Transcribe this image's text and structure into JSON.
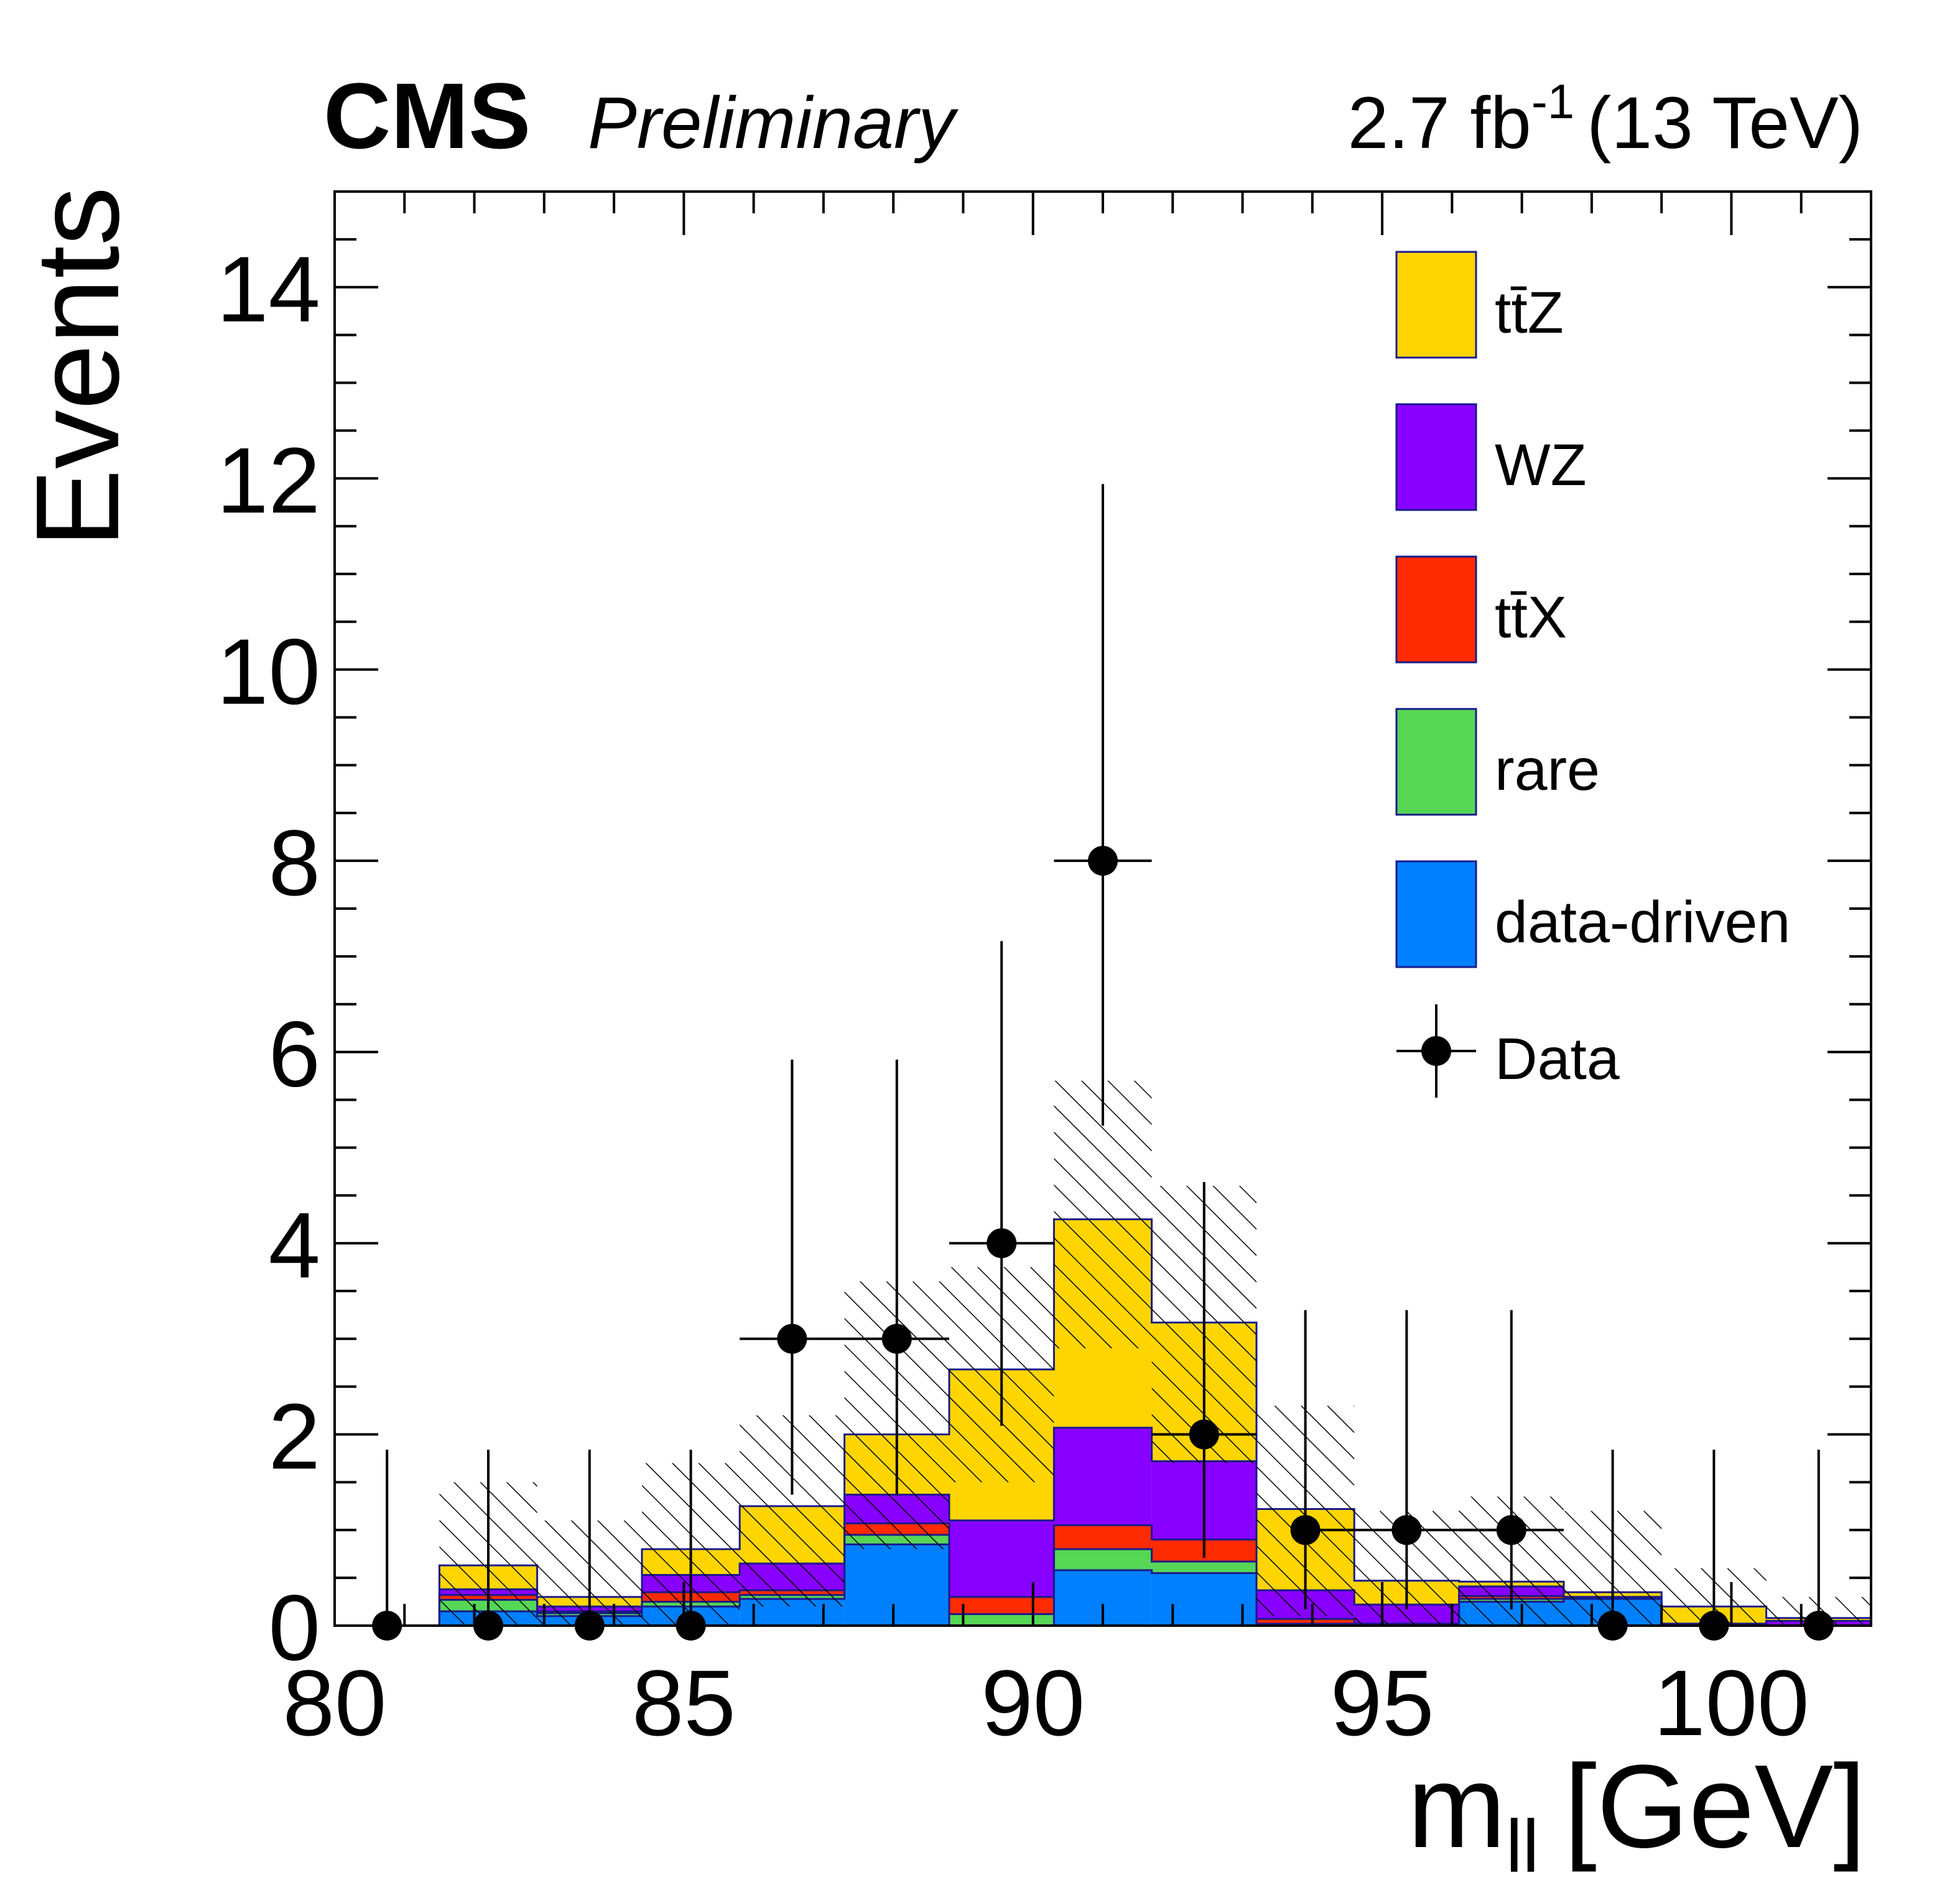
{
  "header": {
    "experiment": "CMS",
    "status": "Preliminary",
    "lumi_value": "2.7 fb",
    "lumi_exp": "-1",
    "energy": "(13 TeV)"
  },
  "chart_data": {
    "type": "bar",
    "stacked": true,
    "xlabel": "m",
    "xlabel_sub": "ll",
    "xlabel_unit": "[GeV]",
    "ylabel": "Events",
    "xlim": [
      80,
      102
    ],
    "ylim": [
      0,
      15
    ],
    "bin_edges": [
      80.0,
      81.5,
      82.9,
      84.4,
      85.8,
      87.3,
      88.8,
      90.3,
      91.7,
      93.2,
      94.6,
      96.1,
      97.6,
      99.0,
      100.5,
      102.0
    ],
    "x_ticks": [
      80,
      85,
      90,
      95,
      100
    ],
    "x_tick_labels": [
      "80",
      "85",
      "90",
      "95",
      "100"
    ],
    "y_ticks": [
      0,
      2,
      4,
      6,
      8,
      10,
      12,
      14
    ],
    "y_tick_labels": [
      "0",
      "2",
      "4",
      "6",
      "8",
      "10",
      "12",
      "14"
    ],
    "series": [
      {
        "name": "data-driven",
        "color": "#0080ff",
        "values": [
          0,
          0.15,
          0.1,
          0.2,
          0.28,
          0.85,
          0.0,
          0.58,
          0.55,
          0.0,
          0.0,
          0.25,
          0.28,
          0.0,
          0.0
        ]
      },
      {
        "name": "rare",
        "color": "#55d655",
        "values": [
          0,
          0.12,
          0.03,
          0.05,
          0.04,
          0.1,
          0.12,
          0.22,
          0.12,
          0.02,
          0.0,
          0.03,
          0.0,
          0.0,
          0.0
        ]
      },
      {
        "name": "tt̄X",
        "color": "#ff2a00",
        "values": [
          0,
          0.05,
          0.02,
          0.1,
          0.05,
          0.12,
          0.18,
          0.25,
          0.23,
          0.05,
          0.02,
          0.03,
          0.02,
          0.02,
          0.0
        ]
      },
      {
        "name": "WZ",
        "color": "#8800ff",
        "values": [
          0,
          0.06,
          0.05,
          0.18,
          0.28,
          0.3,
          0.8,
          1.02,
          0.82,
          0.3,
          0.2,
          0.1,
          0.0,
          0.0,
          0.05
        ]
      },
      {
        "name": "tt̄Z",
        "color": "#ffd500",
        "values": [
          0,
          0.25,
          0.1,
          0.27,
          0.6,
          0.63,
          1.58,
          2.18,
          1.45,
          0.85,
          0.25,
          0.05,
          0.05,
          0.18,
          0.03
        ]
      }
    ],
    "uncertainty_band": {
      "lower": [
        0,
        0.0,
        0.0,
        0.0,
        0.2,
        0.8,
        1.5,
        2.9,
        1.7,
        0.1,
        0.0,
        0.0,
        0.0,
        0.0,
        0.0
      ],
      "upper": [
        0,
        1.5,
        1.1,
        1.7,
        2.2,
        3.6,
        3.75,
        5.7,
        4.6,
        2.3,
        1.2,
        1.35,
        1.2,
        0.6,
        0.3
      ]
    },
    "data": {
      "name": "Data",
      "x": [
        80.75,
        82.2,
        83.65,
        85.1,
        86.55,
        88.05,
        89.55,
        91.0,
        92.45,
        93.9,
        95.35,
        96.85,
        98.3,
        99.75,
        101.25
      ],
      "y": [
        0,
        0,
        0,
        0,
        3,
        3,
        4,
        8,
        2,
        1,
        1,
        1,
        0,
        0,
        0
      ],
      "err_low": [
        0,
        0,
        0,
        0,
        1.63,
        1.63,
        1.91,
        2.77,
        1.29,
        0.83,
        0.83,
        0.83,
        0,
        0,
        0
      ],
      "err_high": [
        1.84,
        1.84,
        1.84,
        1.84,
        2.92,
        2.92,
        3.16,
        3.94,
        2.64,
        2.3,
        2.3,
        2.3,
        1.84,
        1.84,
        1.84
      ],
      "x_err": [
        0,
        0,
        0,
        0,
        0.75,
        0.75,
        0.75,
        0.7,
        0.75,
        0,
        1.5,
        0.75,
        0,
        0,
        0
      ]
    },
    "legend": {
      "position": "top-right",
      "entries": [
        "tt̄Z",
        "WZ",
        "tt̄X",
        "rare",
        "data-driven",
        "Data"
      ]
    }
  }
}
